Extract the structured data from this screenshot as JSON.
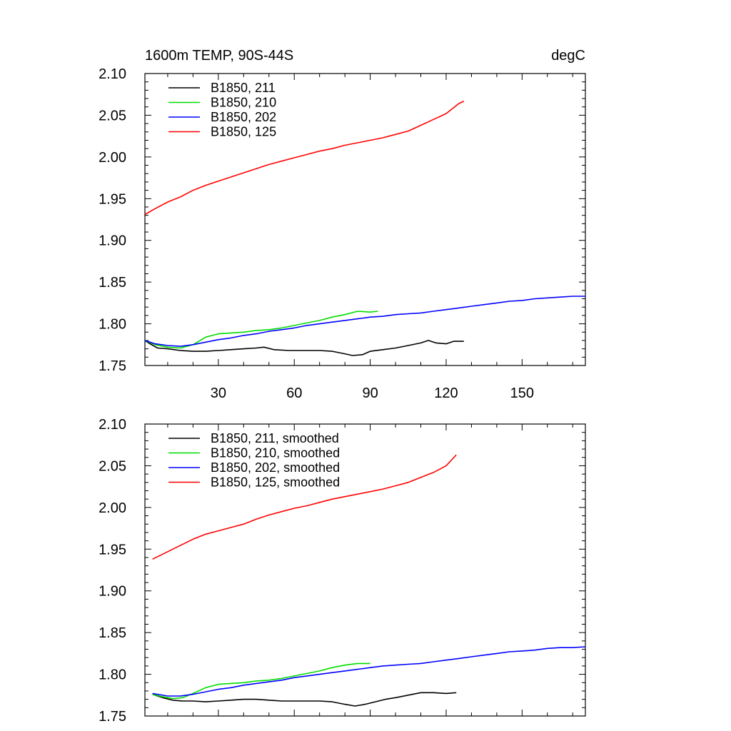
{
  "chart_data": [
    {
      "type": "line",
      "title": "1600m TEMP, 90S-44S",
      "units": "degC",
      "xlim": [
        1,
        175
      ],
      "ylim": [
        1.75,
        2.1
      ],
      "yticks": [
        "1.75",
        "1.80",
        "1.85",
        "1.90",
        "1.95",
        "2.00",
        "2.05",
        "2.10"
      ],
      "xticks": [
        "30",
        "60",
        "90",
        "120",
        "150"
      ],
      "legend_position": "top-left",
      "series": [
        {
          "name": "B1850, 211",
          "color": "#000000",
          "x": [
            1,
            3,
            6,
            10,
            15,
            20,
            25,
            30,
            35,
            40,
            45,
            48,
            52,
            58,
            65,
            70,
            75,
            80,
            83,
            87,
            90,
            95,
            100,
            105,
            110,
            113,
            116,
            120,
            123,
            127
          ],
          "y": [
            1.78,
            1.776,
            1.771,
            1.77,
            1.768,
            1.767,
            1.767,
            1.768,
            1.769,
            1.77,
            1.771,
            1.772,
            1.769,
            1.768,
            1.768,
            1.768,
            1.767,
            1.764,
            1.762,
            1.763,
            1.767,
            1.769,
            1.771,
            1.774,
            1.777,
            1.78,
            1.777,
            1.776,
            1.779,
            1.779
          ]
        },
        {
          "name": "B1850, 210",
          "color": "#00dd00",
          "x": [
            1,
            5,
            10,
            15,
            20,
            25,
            30,
            35,
            40,
            45,
            50,
            55,
            60,
            65,
            70,
            75,
            80,
            85,
            90,
            93
          ],
          "y": [
            1.78,
            1.775,
            1.772,
            1.771,
            1.775,
            1.784,
            1.788,
            1.789,
            1.79,
            1.792,
            1.793,
            1.795,
            1.798,
            1.801,
            1.804,
            1.808,
            1.811,
            1.815,
            1.814,
            1.815
          ]
        },
        {
          "name": "B1850, 202",
          "color": "#0000ff",
          "x": [
            1,
            5,
            10,
            15,
            20,
            25,
            30,
            35,
            40,
            45,
            50,
            55,
            60,
            65,
            70,
            75,
            80,
            85,
            90,
            95,
            100,
            105,
            110,
            115,
            120,
            125,
            130,
            135,
            140,
            145,
            150,
            155,
            160,
            165,
            170,
            175
          ],
          "y": [
            1.78,
            1.776,
            1.774,
            1.773,
            1.775,
            1.778,
            1.781,
            1.783,
            1.786,
            1.788,
            1.791,
            1.793,
            1.795,
            1.798,
            1.8,
            1.802,
            1.804,
            1.806,
            1.808,
            1.809,
            1.811,
            1.812,
            1.813,
            1.815,
            1.817,
            1.819,
            1.821,
            1.823,
            1.825,
            1.827,
            1.828,
            1.83,
            1.831,
            1.832,
            1.833,
            1.833
          ]
        },
        {
          "name": "B1850, 125",
          "color": "#ff0000",
          "x": [
            1,
            5,
            10,
            15,
            20,
            25,
            30,
            35,
            40,
            45,
            50,
            55,
            60,
            65,
            70,
            75,
            80,
            85,
            90,
            95,
            100,
            105,
            110,
            115,
            120,
            125,
            127
          ],
          "y": [
            1.931,
            1.938,
            1.946,
            1.952,
            1.96,
            1.966,
            1.971,
            1.976,
            1.981,
            1.986,
            1.991,
            1.995,
            1.999,
            2.003,
            2.007,
            2.01,
            2.014,
            2.017,
            2.02,
            2.023,
            2.027,
            2.031,
            2.038,
            2.045,
            2.052,
            2.064,
            2.067
          ]
        }
      ]
    },
    {
      "type": "line",
      "title": "",
      "units": "",
      "xlim": [
        1,
        175
      ],
      "ylim": [
        1.75,
        2.1
      ],
      "yticks": [
        "1.75",
        "1.80",
        "1.85",
        "1.90",
        "1.95",
        "2.00",
        "2.05",
        "2.10"
      ],
      "xticks": [],
      "legend_position": "top-left",
      "series": [
        {
          "name": "B1850, 211, smoothed",
          "color": "#000000",
          "x": [
            4,
            8,
            12,
            16,
            20,
            25,
            30,
            35,
            40,
            45,
            50,
            55,
            60,
            65,
            70,
            75,
            80,
            84,
            88,
            92,
            96,
            100,
            105,
            110,
            115,
            120,
            124
          ],
          "y": [
            1.776,
            1.772,
            1.769,
            1.768,
            1.768,
            1.767,
            1.768,
            1.769,
            1.77,
            1.77,
            1.769,
            1.768,
            1.768,
            1.768,
            1.768,
            1.767,
            1.764,
            1.762,
            1.764,
            1.767,
            1.77,
            1.772,
            1.775,
            1.778,
            1.778,
            1.777,
            1.778
          ]
        },
        {
          "name": "B1850, 210, smoothed",
          "color": "#00dd00",
          "x": [
            4,
            8,
            12,
            16,
            20,
            25,
            30,
            35,
            40,
            45,
            50,
            55,
            60,
            65,
            70,
            75,
            80,
            85,
            90
          ],
          "y": [
            1.776,
            1.773,
            1.771,
            1.772,
            1.777,
            1.784,
            1.788,
            1.789,
            1.79,
            1.792,
            1.793,
            1.795,
            1.798,
            1.801,
            1.804,
            1.808,
            1.811,
            1.813,
            1.813
          ]
        },
        {
          "name": "B1850, 202, smoothed",
          "color": "#0000ff",
          "x": [
            4,
            10,
            15,
            20,
            25,
            30,
            35,
            40,
            45,
            50,
            55,
            60,
            65,
            70,
            75,
            80,
            85,
            90,
            95,
            100,
            105,
            110,
            115,
            120,
            125,
            130,
            135,
            140,
            145,
            150,
            155,
            160,
            165,
            170,
            175
          ],
          "y": [
            1.777,
            1.774,
            1.774,
            1.776,
            1.779,
            1.782,
            1.784,
            1.787,
            1.789,
            1.791,
            1.793,
            1.796,
            1.798,
            1.8,
            1.802,
            1.804,
            1.806,
            1.808,
            1.81,
            1.811,
            1.812,
            1.813,
            1.815,
            1.817,
            1.819,
            1.821,
            1.823,
            1.825,
            1.827,
            1.828,
            1.829,
            1.831,
            1.832,
            1.832,
            1.833
          ]
        },
        {
          "name": "B1850, 125, smoothed",
          "color": "#ff0000",
          "x": [
            4,
            8,
            12,
            16,
            20,
            25,
            30,
            35,
            40,
            45,
            50,
            55,
            60,
            65,
            70,
            75,
            80,
            85,
            90,
            95,
            100,
            105,
            110,
            115,
            120,
            124
          ],
          "y": [
            1.938,
            1.944,
            1.95,
            1.956,
            1.962,
            1.968,
            1.972,
            1.976,
            1.98,
            1.986,
            1.991,
            1.995,
            1.999,
            2.002,
            2.006,
            2.01,
            2.013,
            2.016,
            2.019,
            2.022,
            2.026,
            2.03,
            2.036,
            2.042,
            2.05,
            2.063
          ]
        }
      ]
    }
  ]
}
